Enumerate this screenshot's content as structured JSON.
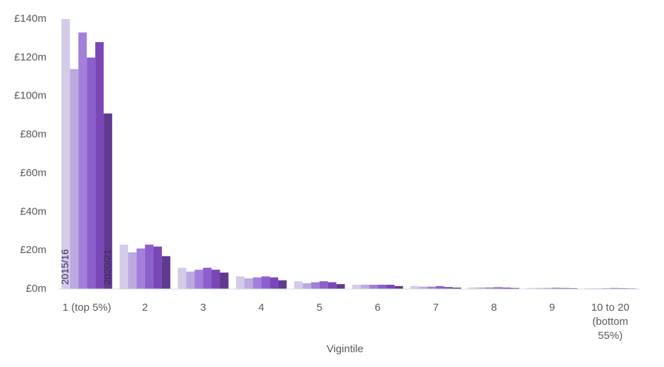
{
  "chart_data": {
    "type": "bar",
    "x_label": "Vigintile",
    "categories": [
      "1 (top 5%)",
      "2",
      "3",
      "4",
      "5",
      "6",
      "7",
      "8",
      "9",
      "10 to 20 (bottom 55%)"
    ],
    "series": [
      {
        "name": "2015/16",
        "color": "#d4cbe8",
        "values": [
          140,
          23,
          11,
          6.5,
          4,
          2.2,
          1.5,
          0.8,
          0.5,
          0.4
        ]
      },
      {
        "color": "#bcaadf",
        "values": [
          114,
          19,
          9,
          5.5,
          3,
          2.2,
          1.2,
          0.8,
          0.5,
          0.3
        ]
      },
      {
        "color": "#a37fdb",
        "values": [
          133,
          21,
          10,
          6,
          3.5,
          2.2,
          1.2,
          0.8,
          0.5,
          0.4
        ]
      },
      {
        "color": "#8c5fcc",
        "values": [
          120,
          23,
          11,
          6.5,
          4,
          2.2,
          1.5,
          0.9,
          0.6,
          0.5
        ]
      },
      {
        "color": "#7a47b6",
        "values": [
          128,
          22,
          10,
          6,
          3.5,
          2.2,
          1,
          0.7,
          0.5,
          0.4
        ]
      },
      {
        "name": "2020/21",
        "color": "#603991",
        "values": [
          91,
          17,
          8.5,
          4.5,
          2.5,
          1.5,
          0.7,
          0.5,
          0.4,
          0.3
        ]
      }
    ],
    "ylim": [
      0,
      140
    ],
    "yticks": [
      {
        "value": 0,
        "label": "£0m"
      },
      {
        "value": 20,
        "label": "£20m"
      },
      {
        "value": 40,
        "label": "£40m"
      },
      {
        "value": 60,
        "label": "£60m"
      },
      {
        "value": 80,
        "label": "£80m"
      },
      {
        "value": 100,
        "label": "£100m"
      },
      {
        "value": 120,
        "label": "£120m"
      },
      {
        "value": 140,
        "label": "£140m"
      }
    ],
    "grid": false
  }
}
